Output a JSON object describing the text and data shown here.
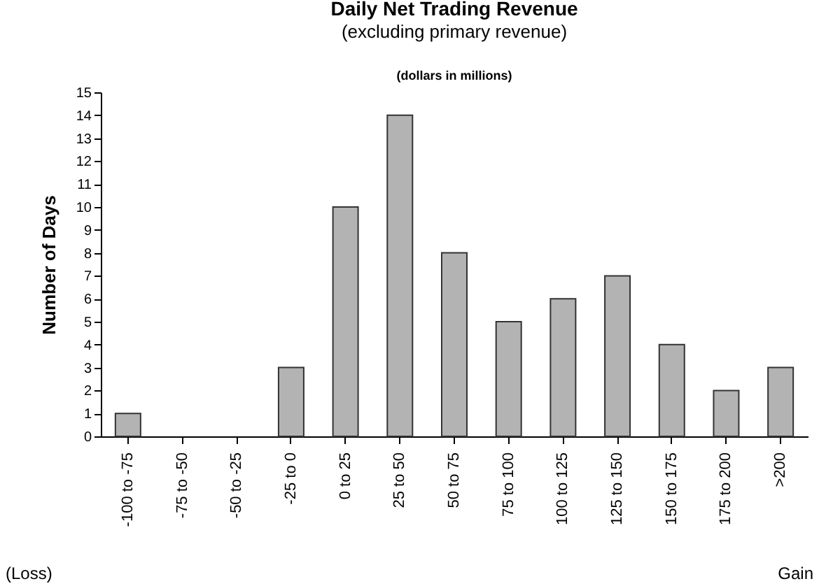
{
  "chart_data": {
    "type": "bar",
    "title": "Daily Net Trading Revenue",
    "subtitle": "(excluding primary revenue)",
    "ylabel": "Number of Days",
    "annotations": [
      "(dollars in millions)",
      "(Loss)",
      "Gain"
    ],
    "categories": [
      "-100 to -75",
      "-75 to -50",
      "-50 to -25",
      "-25 to 0",
      "0 to 25",
      "25 to 50",
      "50 to 75",
      "75 to 100",
      "100 to 125",
      "125 to 150",
      "150 to 175",
      "175 to 200",
      ">200"
    ],
    "values": [
      1,
      0,
      0,
      3,
      10,
      14,
      8,
      5,
      6,
      7,
      4,
      2,
      3
    ],
    "color": "#b3b3b3",
    "ylim": [
      0,
      15
    ],
    "yticks": [
      0,
      1,
      2,
      3,
      4,
      5,
      6,
      7,
      8,
      9,
      10,
      11,
      12,
      13,
      14,
      15
    ],
    "grid": false
  }
}
